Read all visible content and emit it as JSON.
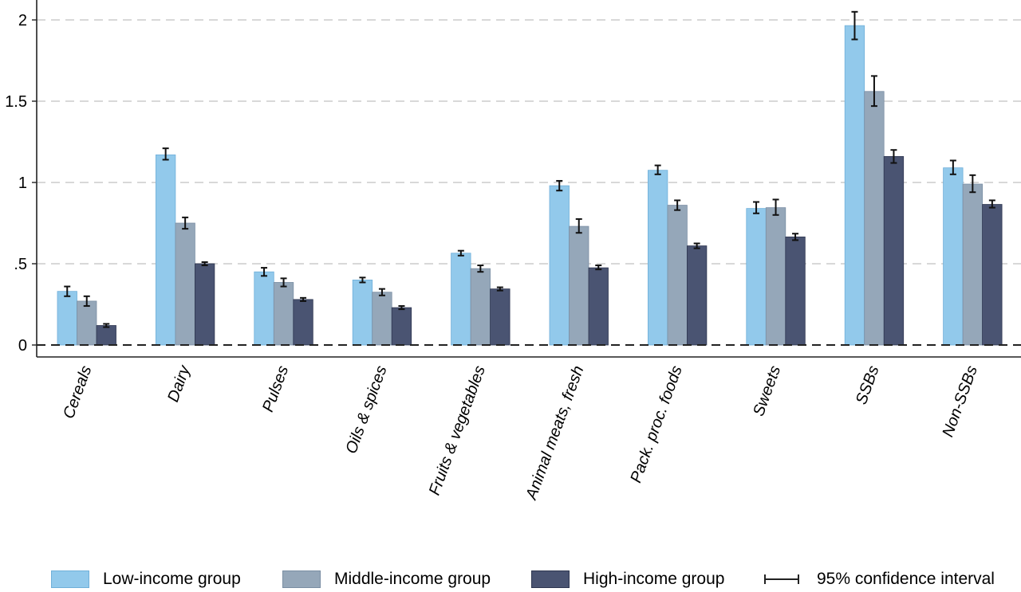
{
  "chart_data": {
    "type": "bar",
    "categories": [
      "Cereals",
      "Dairy",
      "Pulses",
      "Oils & spices",
      "Fruits & vegetables",
      "Animal meats, fresh",
      "Pack. proc. foods",
      "Sweets",
      "SSBs",
      "Non-SSBs"
    ],
    "series": [
      {
        "name": "Low-income group",
        "color": "#92C9EB",
        "values": [
          0.33,
          1.17,
          0.45,
          0.4,
          0.565,
          0.98,
          1.075,
          0.84,
          1.965,
          1.09
        ],
        "ci_low": [
          0.3,
          1.14,
          0.425,
          0.385,
          0.55,
          0.95,
          1.05,
          0.81,
          1.88,
          1.05
        ],
        "ci_high": [
          0.36,
          1.21,
          0.475,
          0.415,
          0.58,
          1.01,
          1.105,
          0.88,
          2.05,
          1.135
        ]
      },
      {
        "name": "Middle-income group",
        "color": "#95A7B9",
        "values": [
          0.27,
          0.75,
          0.385,
          0.325,
          0.47,
          0.73,
          0.86,
          0.845,
          1.56,
          0.99
        ],
        "ci_low": [
          0.24,
          0.715,
          0.36,
          0.305,
          0.45,
          0.69,
          0.83,
          0.8,
          1.47,
          0.94
        ],
        "ci_high": [
          0.3,
          0.785,
          0.41,
          0.345,
          0.49,
          0.775,
          0.89,
          0.895,
          1.655,
          1.045
        ]
      },
      {
        "name": "High-income group",
        "color": "#4A5472",
        "values": [
          0.12,
          0.5,
          0.28,
          0.23,
          0.345,
          0.475,
          0.61,
          0.665,
          1.16,
          0.865
        ],
        "ci_low": [
          0.11,
          0.49,
          0.27,
          0.22,
          0.335,
          0.465,
          0.595,
          0.645,
          1.12,
          0.845
        ],
        "ci_high": [
          0.13,
          0.51,
          0.29,
          0.24,
          0.355,
          0.49,
          0.625,
          0.685,
          1.2,
          0.89
        ]
      }
    ],
    "yticks": [
      0,
      0.5,
      1,
      1.5,
      2
    ],
    "ytick_labels": [
      "0",
      ".5",
      "1",
      "1.5",
      "2"
    ],
    "ylim": [
      -0.07,
      2.13
    ],
    "grid": true,
    "gridline_style": "dashed",
    "reference_line_at": 0,
    "ci_legend_label": "95% confidence interval",
    "legend_placement": "bottom",
    "title": "",
    "xlabel": "",
    "ylabel": ""
  }
}
